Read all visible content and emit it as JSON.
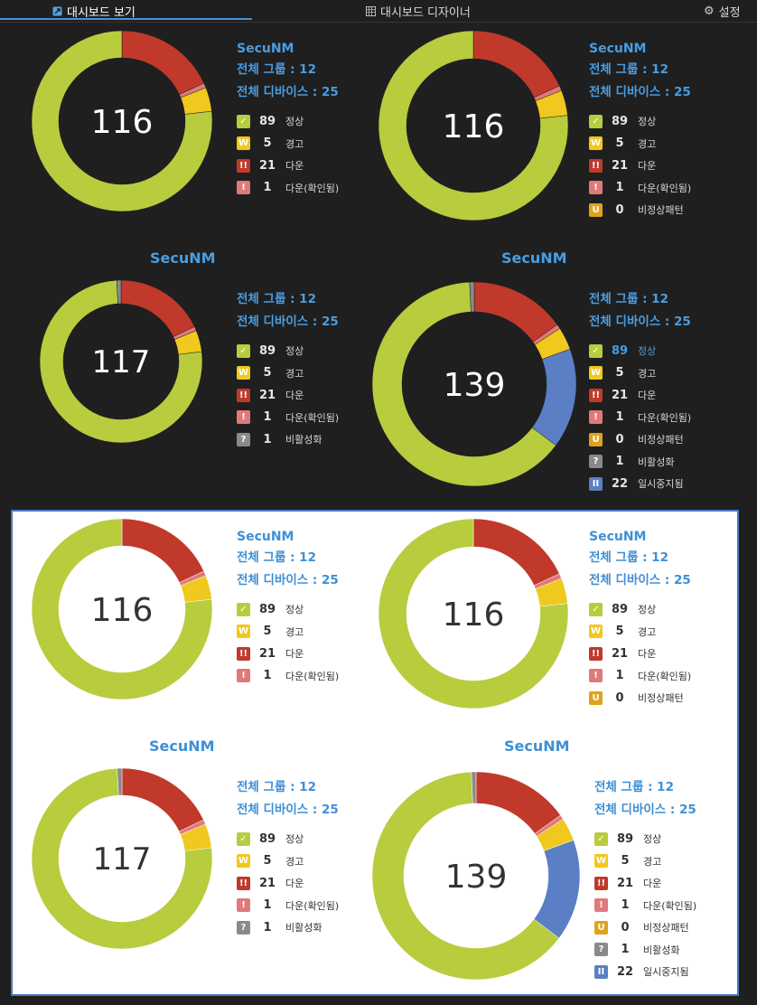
{
  "tabs": [
    {
      "label": "대시보드 보기",
      "icon": "dashboard-view-icon"
    },
    {
      "label": "대시보드 디자이너",
      "icon": "designer-grid-icon"
    },
    {
      "label": "설정",
      "icon": "gear-icon"
    }
  ],
  "colors": {
    "normal": "#b8cc3e",
    "warning": "#f0c81e",
    "down": "#c0392b",
    "down_ack": "#e07a7a",
    "abnormal": "#e0a21e",
    "inactive": "#8a8a8a",
    "paused": "#5b7fc4",
    "accent": "#4a9de0"
  },
  "labels": {
    "title": "SecuNM",
    "groups": "전체 그룹 : 12",
    "devices": "전체 디바이스 : 25"
  },
  "statuses": {
    "normal": {
      "count": "89",
      "label": "정상",
      "value": 89,
      "glyph": "✓",
      "icon": "check-icon"
    },
    "warning": {
      "count": "5",
      "label": "경고",
      "value": 5,
      "glyph": "W",
      "icon": "warning-icon"
    },
    "down": {
      "count": "21",
      "label": "다운",
      "value": 21,
      "glyph": "!!",
      "icon": "down-icon"
    },
    "down_ack": {
      "count": "1",
      "label": "다운(확인됨)",
      "value": 1,
      "glyph": "!",
      "icon": "down-acknowledged-icon"
    },
    "abnormal": {
      "count": "0",
      "label": "비정상패턴",
      "value": 0,
      "glyph": "U",
      "icon": "abnormal-pattern-icon"
    },
    "inactive": {
      "count": "1",
      "label": "비활성화",
      "value": 1,
      "glyph": "?",
      "icon": "inactive-icon"
    },
    "paused": {
      "count": "22",
      "label": "일시중지됨",
      "value": 22,
      "glyph": "II",
      "icon": "paused-icon"
    }
  },
  "widgets": [
    {
      "total": "116",
      "theme": "dark",
      "title_pos": "inline",
      "keys": [
        "normal",
        "warning",
        "down",
        "down_ack"
      ]
    },
    {
      "total": "116",
      "theme": "dark",
      "title_pos": "inline",
      "keys": [
        "normal",
        "warning",
        "down",
        "down_ack",
        "abnormal"
      ]
    },
    {
      "total": "117",
      "theme": "dark",
      "title_pos": "top",
      "keys": [
        "normal",
        "warning",
        "down",
        "down_ack",
        "inactive"
      ]
    },
    {
      "total": "139",
      "theme": "dark",
      "title_pos": "top",
      "keys": [
        "normal",
        "warning",
        "down",
        "down_ack",
        "abnormal",
        "inactive",
        "paused"
      ]
    },
    {
      "total": "116",
      "theme": "light",
      "title_pos": "inline",
      "keys": [
        "normal",
        "warning",
        "down",
        "down_ack"
      ]
    },
    {
      "total": "116",
      "theme": "light",
      "title_pos": "inline",
      "keys": [
        "normal",
        "warning",
        "down",
        "down_ack",
        "abnormal"
      ]
    },
    {
      "total": "117",
      "theme": "light",
      "title_pos": "top",
      "keys": [
        "normal",
        "warning",
        "down",
        "down_ack",
        "inactive"
      ]
    },
    {
      "total": "139",
      "theme": "light",
      "title_pos": "top",
      "keys": [
        "normal",
        "warning",
        "down",
        "down_ack",
        "abnormal",
        "inactive",
        "paused"
      ]
    }
  ]
}
